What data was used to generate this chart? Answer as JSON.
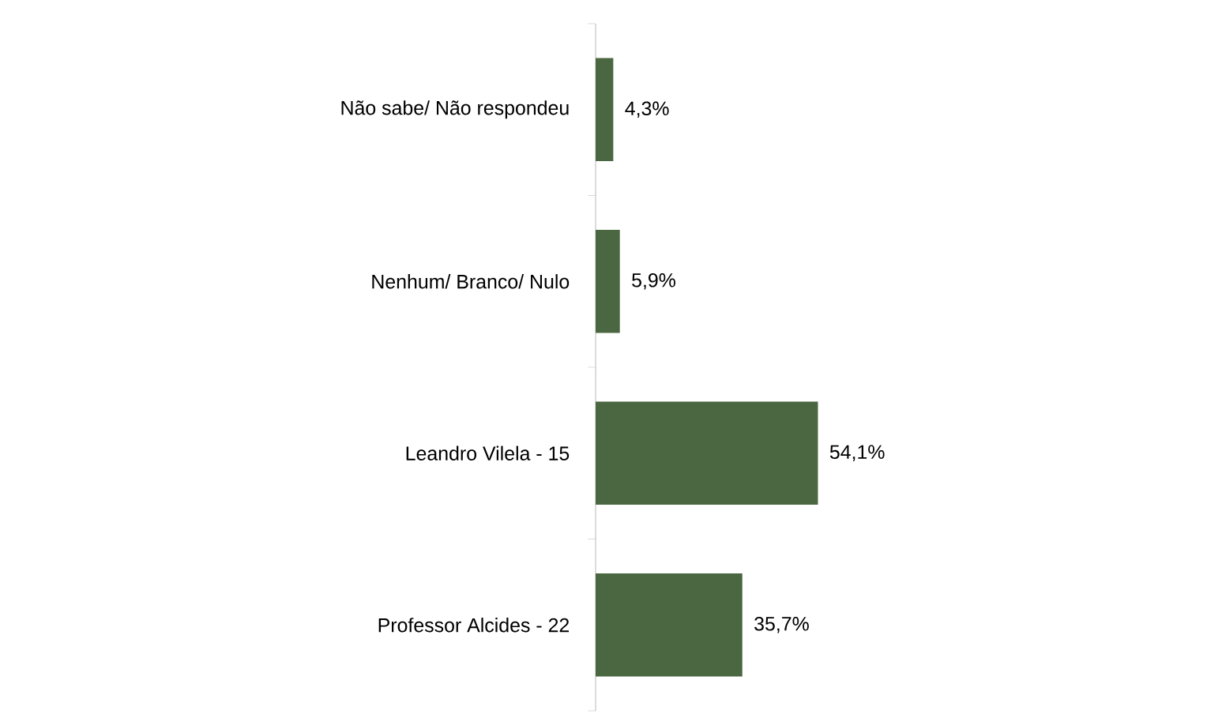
{
  "chart_data": {
    "type": "bar",
    "orientation": "horizontal",
    "categories": [
      "Não sabe/ Não respondeu",
      "Nenhum/ Branco/ Nulo",
      "Leandro Vilela - 15",
      "Professor Alcides - 22"
    ],
    "values": [
      4.3,
      5.9,
      54.1,
      35.7
    ],
    "value_labels": [
      "4,3%",
      "5,9%",
      "54,1%",
      "35,7%"
    ],
    "color": "#4a6741"
  }
}
